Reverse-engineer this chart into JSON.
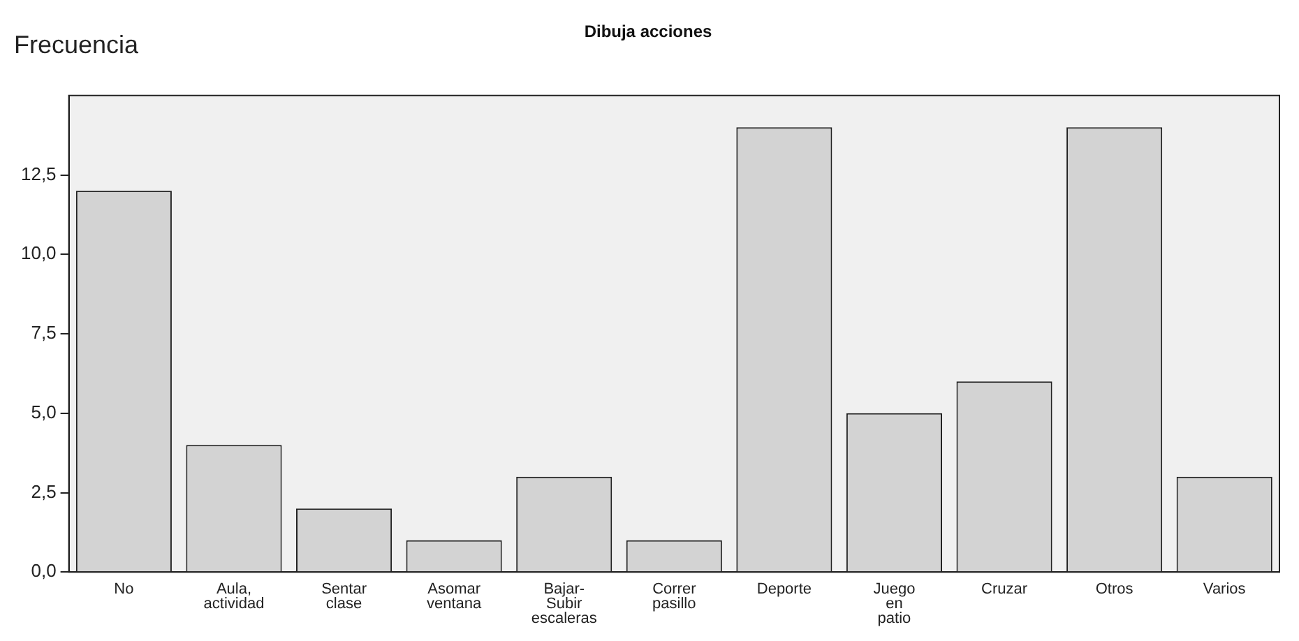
{
  "chart_data": {
    "type": "bar",
    "title": "Dibuja acciones",
    "ylabel": "Frecuencia",
    "categories": [
      "No",
      "Aula, actividad",
      "Sentar clase",
      "Asomar ventana",
      "Bajar-Subir escaleras",
      "Correr pasillo",
      "Deporte",
      "Juego en patio",
      "Cruzar",
      "Otros",
      "Varios"
    ],
    "values": [
      12,
      4,
      2,
      1,
      3,
      1,
      14,
      5,
      6,
      14,
      3
    ],
    "color": "#d3d3d3",
    "ylim": [
      0,
      15
    ],
    "yticks": [
      {
        "value": 0,
        "label": "0,0"
      },
      {
        "value": 2.5,
        "label": "2,5"
      },
      {
        "value": 5,
        "label": "5,0"
      },
      {
        "value": 7.5,
        "label": "7,5"
      },
      {
        "value": 10,
        "label": "10,0"
      },
      {
        "value": 12.5,
        "label": "12,5"
      }
    ],
    "grid": false,
    "legend": false
  }
}
